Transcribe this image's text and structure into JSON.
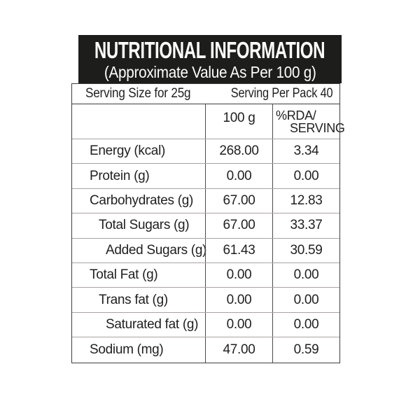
{
  "header": {
    "title": "NUTRITIONAL INFORMATION",
    "subtitle": "(Approximate Value As Per 100 g)",
    "bg_color": "#1d1d1b",
    "text_color": "#ffffff"
  },
  "serving": {
    "size_label": "Serving Size for 25g",
    "pack_label": "Serving Per Pack 40"
  },
  "table": {
    "header": {
      "nutrient_col": "",
      "per_100g_col": "100 g",
      "rda_col_line1": "%RDA/",
      "rda_col_line2": "SERVING"
    },
    "rows": [
      {
        "label": "Energy (kcal)",
        "per_100g": "268.00",
        "rda_per_serving": "3.34",
        "indent": 0
      },
      {
        "label": "Protein (g)",
        "per_100g": "0.00",
        "rda_per_serving": "0.00",
        "indent": 0
      },
      {
        "label": "Carbohydrates (g)",
        "per_100g": "67.00",
        "rda_per_serving": "12.83",
        "indent": 0
      },
      {
        "label": "Total Sugars (g)",
        "per_100g": "67.00",
        "rda_per_serving": "33.37",
        "indent": 1
      },
      {
        "label": "Added Sugars (g)",
        "per_100g": "61.43",
        "rda_per_serving": "30.59",
        "indent": 2
      },
      {
        "label": "Total Fat (g)",
        "per_100g": "0.00",
        "rda_per_serving": "0.00",
        "indent": 0
      },
      {
        "label": "Trans fat (g)",
        "per_100g": "0.00",
        "rda_per_serving": "0.00",
        "indent": 1
      },
      {
        "label": "Saturated fat (g)",
        "per_100g": "0.00",
        "rda_per_serving": "0.00",
        "indent": 2
      },
      {
        "label": "Sodium (mg)",
        "per_100g": "47.00",
        "rda_per_serving": "0.59",
        "indent": 0
      }
    ]
  },
  "colors": {
    "outer_border": "#3e3e3e",
    "column_divider": "#4a4a4a",
    "row_divider": "#aaa3a3",
    "header_bg": "#1d1d1b"
  }
}
